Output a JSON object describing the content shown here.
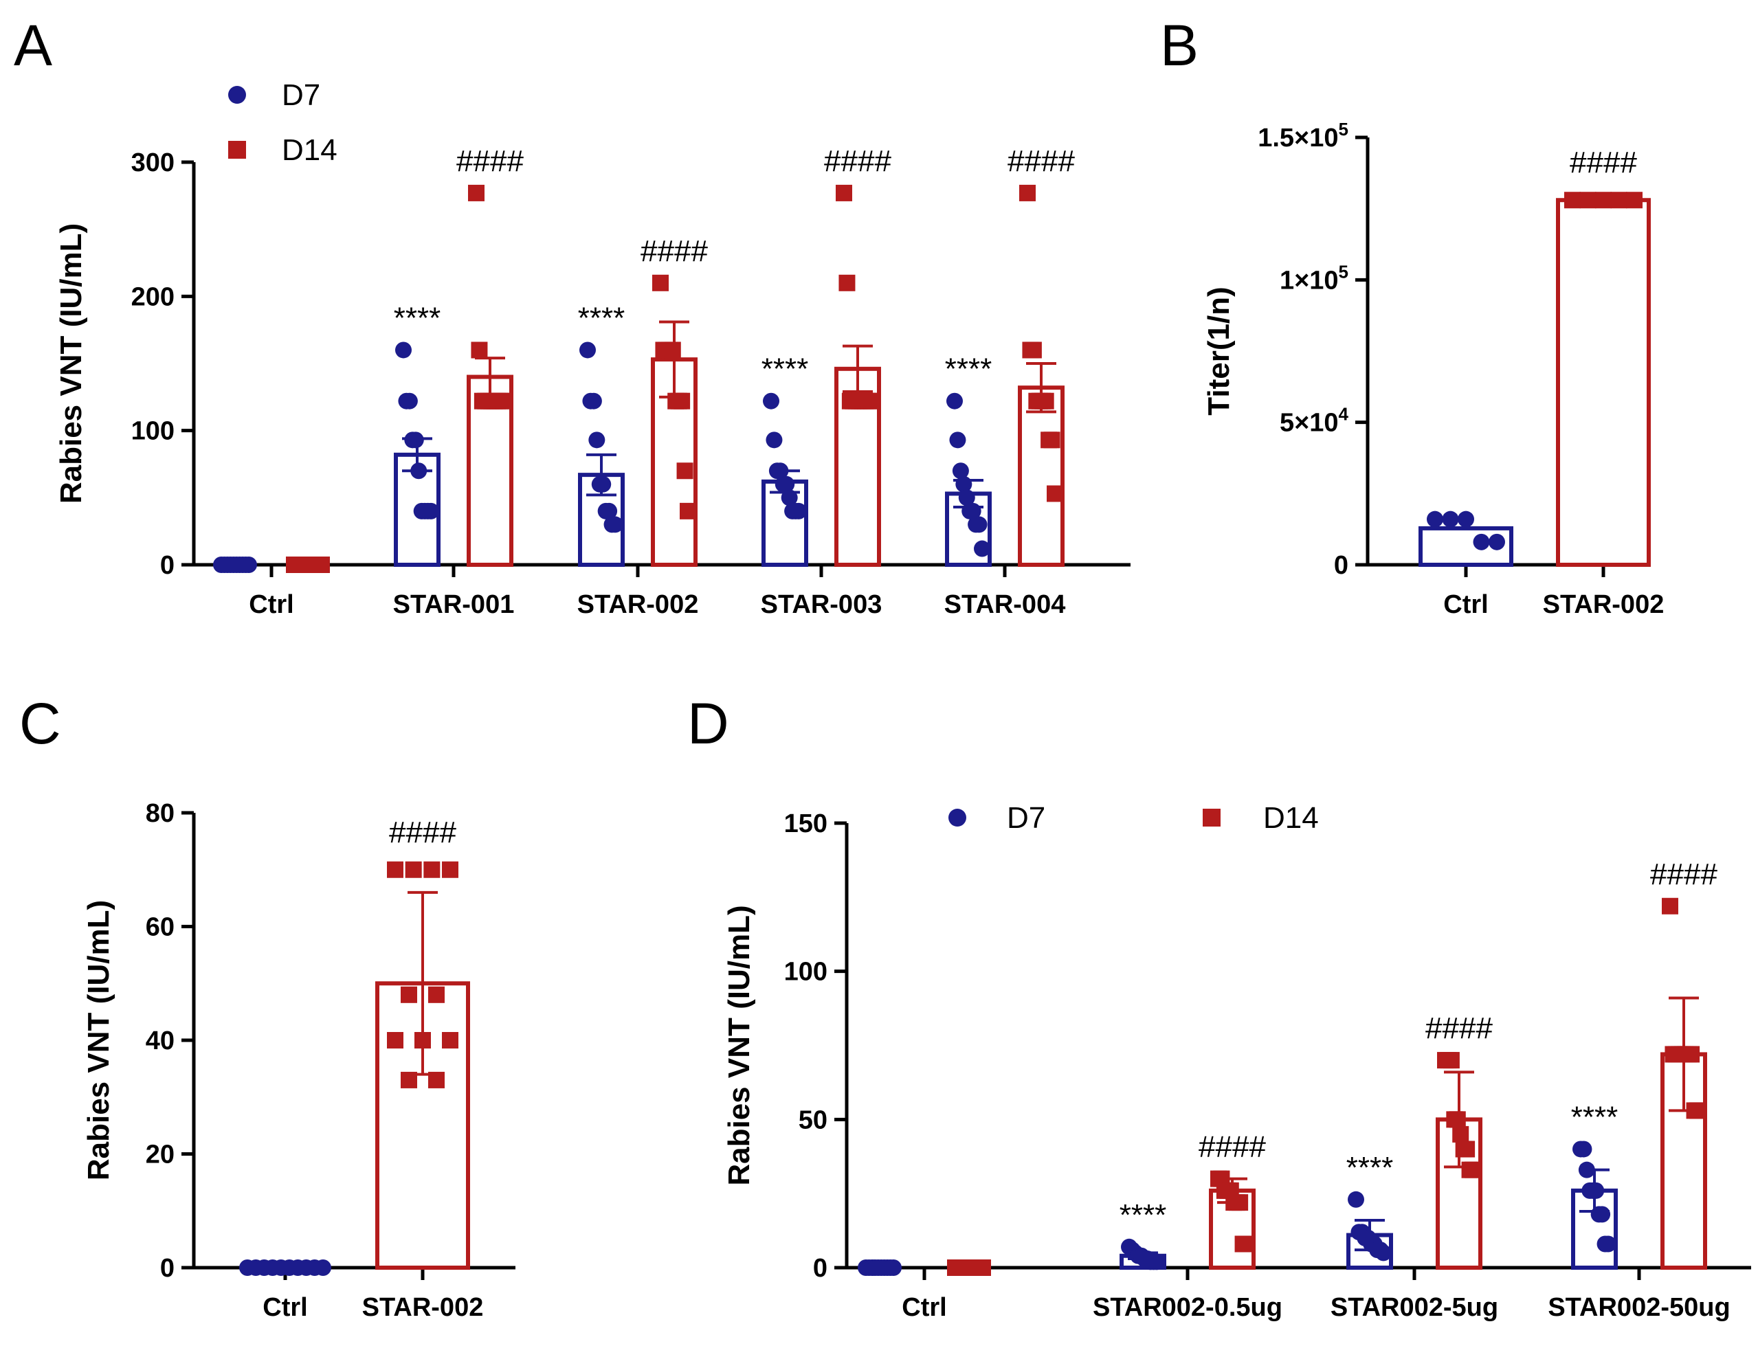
{
  "colors": {
    "d7": "#1c1c8c",
    "d14": "#b41c1c",
    "axis": "#000000"
  },
  "chart_data": [
    {
      "panel": "A",
      "type": "bar",
      "ylabel": "Rabies VNT (IU/mL)",
      "ylim": [
        0,
        300
      ],
      "yticks": [
        "0",
        "100",
        "200",
        "300"
      ],
      "categories": [
        "Ctrl",
        "STAR-001",
        "STAR-002",
        "STAR-003",
        "STAR-004"
      ],
      "legend": [
        "D7",
        "D14"
      ],
      "legend_position": "top-left",
      "series": [
        {
          "name": "D7",
          "marker": "circle",
          "values": [
            0,
            82,
            67,
            62,
            53
          ],
          "errors": [
            0,
            12,
            15,
            8,
            10
          ],
          "points": [
            [
              0,
              0,
              0,
              0,
              0,
              0,
              0,
              0,
              0,
              0
            ],
            [
              160,
              122,
              122,
              93,
              93,
              70,
              40,
              40,
              40,
              40
            ],
            [
              160,
              122,
              122,
              93,
              60,
              60,
              40,
              40,
              30,
              30
            ],
            [
              122,
              93,
              70,
              70,
              60,
              60,
              50,
              40,
              40,
              40
            ],
            [
              122,
              93,
              70,
              60,
              50,
              40,
              40,
              30,
              30,
              12
            ]
          ],
          "annotations": [
            "",
            "****",
            "****",
            "****",
            "****"
          ]
        },
        {
          "name": "D14",
          "marker": "square",
          "values": [
            0,
            140,
            153,
            146,
            132
          ],
          "errors": [
            0,
            14,
            28,
            17,
            18
          ],
          "points": [
            [
              0,
              0,
              0,
              0,
              0,
              0,
              0,
              0,
              0,
              0
            ],
            [
              277,
              160,
              122,
              122,
              122,
              122,
              122,
              122,
              122,
              122
            ],
            [
              210,
              160,
              160,
              160,
              160,
              122,
              122,
              122,
              70,
              40
            ],
            [
              277,
              210,
              122,
              122,
              122,
              122,
              122,
              122,
              122,
              122
            ],
            [
              277,
              160,
              160,
              122,
              122,
              122,
              122,
              93,
              93,
              53
            ]
          ],
          "annotations": [
            "",
            "####",
            "####",
            "####",
            "####"
          ]
        }
      ]
    },
    {
      "panel": "B",
      "type": "bar",
      "ylabel": "Titer(1/n)",
      "ylim": [
        0,
        150000
      ],
      "yticks": [
        {
          "value": 0,
          "base": "0",
          "exp": ""
        },
        {
          "value": 50000,
          "base": "5×10",
          "exp": "4"
        },
        {
          "value": 100000,
          "base": "1×10",
          "exp": "5"
        },
        {
          "value": 150000,
          "base": "1.5×10",
          "exp": "5"
        }
      ],
      "categories": [
        "Ctrl",
        "STAR-002"
      ],
      "series": [
        {
          "name": "Titer",
          "values": [
            12800,
            128000
          ],
          "markers": [
            "circle",
            "square"
          ],
          "groupColors": [
            "d7",
            "d14"
          ],
          "points": [
            [
              16000,
              16000,
              16000,
              8000,
              8000
            ],
            [
              128000,
              128000,
              128000,
              128000,
              128000
            ]
          ],
          "annotations": [
            "",
            "####"
          ]
        }
      ]
    },
    {
      "panel": "C",
      "type": "bar",
      "ylabel": "Rabies VNT (IU/mL)",
      "ylim": [
        0,
        80
      ],
      "yticks": [
        "0",
        "20",
        "40",
        "60",
        "80"
      ],
      "categories": [
        "Ctrl",
        "STAR-002"
      ],
      "series": [
        {
          "name": "VNT",
          "values": [
            0,
            50
          ],
          "errors": [
            0,
            16
          ],
          "markers": [
            "circle",
            "square"
          ],
          "groupColors": [
            "d7",
            "d14"
          ],
          "points": [
            [
              0,
              0,
              0,
              0,
              0,
              0,
              0,
              0,
              0,
              0
            ],
            [
              70,
              70,
              70,
              70,
              48,
              48,
              40,
              40,
              40,
              33,
              33
            ]
          ],
          "annotations": [
            "",
            "####"
          ]
        }
      ]
    },
    {
      "panel": "D",
      "type": "bar",
      "ylabel": "Rabies VNT (IU/mL)",
      "ylim": [
        0,
        150
      ],
      "yticks": [
        "0",
        "50",
        "100",
        "150"
      ],
      "categories": [
        "Ctrl",
        "STAR002-0.5ug",
        "STAR002-5ug",
        "STAR002-50ug"
      ],
      "legend": [
        "D7",
        "D14"
      ],
      "legend_position": "top",
      "series": [
        {
          "name": "D7",
          "marker": "circle",
          "values": [
            0,
            4,
            11,
            26
          ],
          "errors": [
            0,
            1,
            5,
            7
          ],
          "points": [
            [
              0,
              0,
              0,
              0,
              0,
              0,
              0,
              0,
              0,
              0
            ],
            [
              7,
              6,
              5,
              4,
              4,
              3,
              3,
              2,
              2,
              2
            ],
            [
              23,
              12,
              12,
              10,
              10,
              8,
              8,
              6,
              6,
              5
            ],
            [
              40,
              40,
              33,
              26,
              26,
              26,
              18,
              18,
              8,
              8
            ]
          ],
          "annotations": [
            "",
            "****",
            "****",
            "****"
          ]
        },
        {
          "name": "D14",
          "marker": "square",
          "values": [
            0,
            26,
            50,
            72
          ],
          "errors": [
            0,
            4,
            16,
            19
          ],
          "points": [
            [
              0,
              0,
              0,
              0,
              0,
              0,
              0,
              0,
              0,
              0
            ],
            [
              30,
              30,
              26,
              26,
              26,
              22,
              22,
              22,
              8,
              8
            ],
            [
              70,
              70,
              70,
              50,
              50,
              45,
              40,
              40,
              33,
              33
            ],
            [
              122,
              72,
              72,
              72,
              72,
              72,
              72,
              72,
              53,
              53
            ]
          ],
          "annotations": [
            "",
            "####",
            "####",
            "####"
          ]
        }
      ]
    }
  ],
  "panels": [
    {
      "letter": "A"
    },
    {
      "letter": "B"
    },
    {
      "letter": "C"
    },
    {
      "letter": "D"
    }
  ]
}
